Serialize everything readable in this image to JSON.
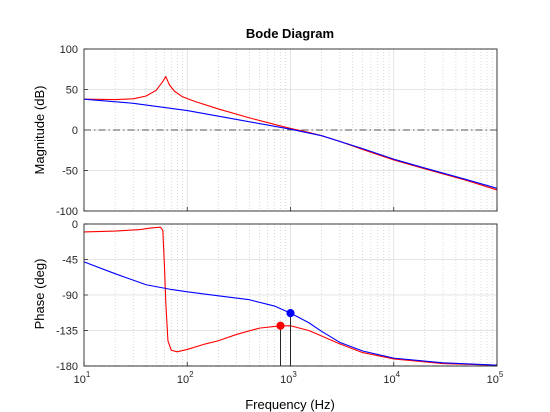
{
  "chart_data": {
    "type": "line",
    "title": "Bode Diagram",
    "xlabel": "Frequency  (Hz)",
    "x_scale": "log",
    "xlim": [
      10,
      100000
    ],
    "x_ticks": [
      10,
      100,
      1000,
      10000,
      100000
    ],
    "grid": true,
    "colors": {
      "red": "#ff0000",
      "blue": "#0000ff",
      "axes": "#262626"
    },
    "panels": [
      {
        "ylabel": "Magnitude (dB)",
        "ylim": [
          -100,
          100
        ],
        "y_ticks": [
          100,
          50,
          0,
          -50,
          -100
        ],
        "reference_line": 0,
        "series": [
          {
            "color": "#ff0000",
            "points": [
              [
                10,
                38
              ],
              [
                20,
                37.6
              ],
              [
                30,
                38.5
              ],
              [
                40,
                42
              ],
              [
                50,
                49
              ],
              [
                58,
                60
              ],
              [
                62,
                66
              ],
              [
                67,
                56
              ],
              [
                75,
                48
              ],
              [
                90,
                41
              ],
              [
                120,
                35
              ],
              [
                200,
                26
              ],
              [
                400,
                15
              ],
              [
                800,
                5
              ],
              [
                1000,
                2
              ],
              [
                1500,
                -3
              ],
              [
                2000,
                -7
              ],
              [
                3000,
                -14
              ],
              [
                5000,
                -24
              ],
              [
                10000,
                -37
              ],
              [
                20000,
                -48
              ],
              [
                50000,
                -62
              ],
              [
                100000,
                -74
              ]
            ]
          },
          {
            "color": "#0000ff",
            "points": [
              [
                10,
                38
              ],
              [
                30,
                33
              ],
              [
                100,
                24
              ],
              [
                300,
                13
              ],
              [
                1000,
                1
              ],
              [
                2000,
                -7
              ],
              [
                5000,
                -23
              ],
              [
                10000,
                -36
              ],
              [
                20000,
                -47
              ],
              [
                50000,
                -61
              ],
              [
                100000,
                -72
              ]
            ]
          }
        ]
      },
      {
        "ylabel": "Phase (deg)",
        "ylim": [
          -180,
          0
        ],
        "y_ticks": [
          0,
          -45,
          -90,
          -135,
          -180
        ],
        "reference_line": -180,
        "series": [
          {
            "color": "#ff0000",
            "points": [
              [
                10,
                -10
              ],
              [
                20,
                -9
              ],
              [
                35,
                -7
              ],
              [
                45,
                -5
              ],
              [
                55,
                -4
              ],
              [
                58,
                -8
              ],
              [
                60,
                -50
              ],
              [
                62,
                -100
              ],
              [
                65,
                -148
              ],
              [
                70,
                -160
              ],
              [
                80,
                -162
              ],
              [
                100,
                -159
              ],
              [
                150,
                -152
              ],
              [
                200,
                -148
              ],
              [
                300,
                -140
              ],
              [
                500,
                -132
              ],
              [
                800,
                -129
              ],
              [
                1000,
                -129
              ],
              [
                1500,
                -135
              ],
              [
                2000,
                -142
              ],
              [
                3000,
                -152
              ],
              [
                5000,
                -163
              ],
              [
                10000,
                -171
              ],
              [
                30000,
                -177
              ],
              [
                100000,
                -179
              ]
            ]
          },
          {
            "color": "#0000ff",
            "points": [
              [
                10,
                -48
              ],
              [
                20,
                -63
              ],
              [
                40,
                -77
              ],
              [
                70,
                -83
              ],
              [
                100,
                -86
              ],
              [
                200,
                -91
              ],
              [
                400,
                -96
              ],
              [
                700,
                -104
              ],
              [
                1000,
                -113
              ],
              [
                1500,
                -125
              ],
              [
                2000,
                -136
              ],
              [
                3000,
                -150
              ],
              [
                5000,
                -161
              ],
              [
                10000,
                -170
              ],
              [
                30000,
                -176
              ],
              [
                100000,
                -179
              ]
            ]
          }
        ],
        "markers": [
          {
            "color": "#0000ff",
            "x": 1000,
            "y": -113
          },
          {
            "color": "#ff0000",
            "x": 800,
            "y": -129
          }
        ]
      }
    ]
  }
}
